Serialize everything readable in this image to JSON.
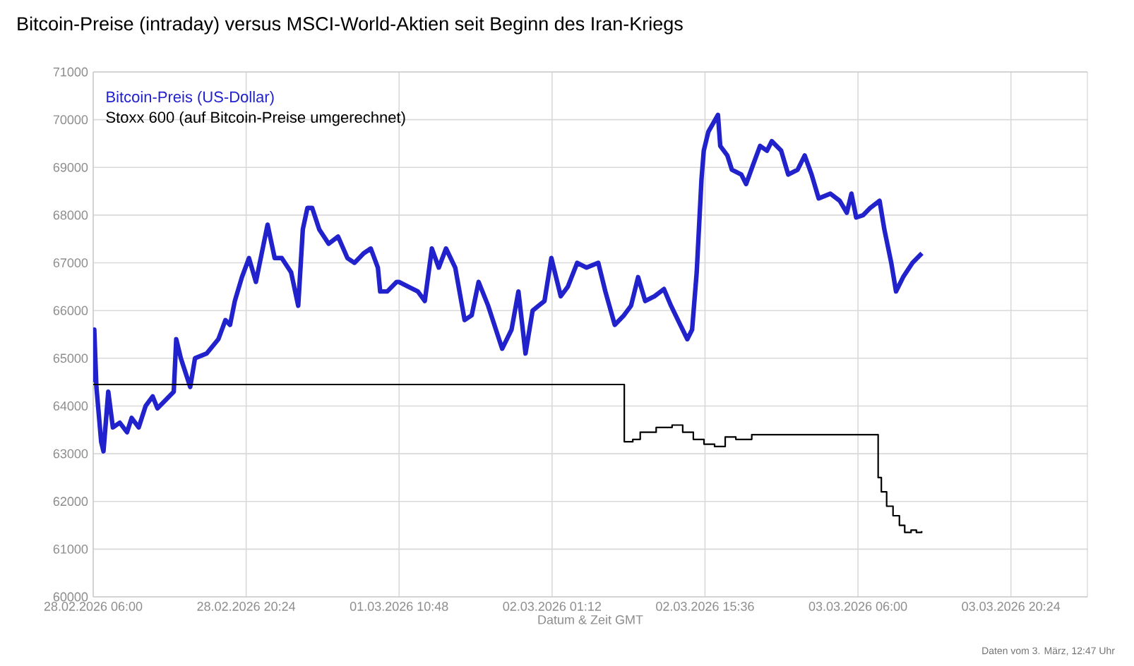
{
  "chart_data": {
    "type": "line",
    "title": "Bitcoin-Preise (intraday) versus MSCI-World-Aktien seit Beginn des Iran-Kriegs",
    "xlabel": "Datum & Zeit GMT",
    "annotations": [
      "Daten vom 3. März, 12:47 Uhr"
    ],
    "xlim": [
      "2026-02-28T06:00",
      "2026-03-04T03:36"
    ],
    "ylim": [
      60000,
      71000
    ],
    "xticks": [
      {
        "value": "2026-02-28T06:00",
        "label": "28.02.2026 06:00"
      },
      {
        "value": "2026-02-28T20:24",
        "label": "28.02.2026 20:24"
      },
      {
        "value": "2026-03-01T10:48",
        "label": "01.03.2026 10:48"
      },
      {
        "value": "2026-03-02T01:12",
        "label": "02.03.2026 01:12"
      },
      {
        "value": "2026-03-02T15:36",
        "label": "02.03.2026 15:36"
      },
      {
        "value": "2026-03-03T06:00",
        "label": "03.03.2026 06:00"
      },
      {
        "value": "2026-03-03T20:24",
        "label": "03.03.2026 20:24"
      }
    ],
    "yticks": [
      60000,
      61000,
      62000,
      63000,
      64000,
      65000,
      66000,
      67000,
      68000,
      69000,
      70000,
      71000
    ],
    "grid": true,
    "legend": "top left",
    "series": [
      {
        "name": "Bitcoin-Preis (US-Dollar)",
        "type": "line",
        "color": "#2222cc",
        "x": [
          "2026-02-28T06:00",
          "2026-02-28T06:06",
          "2026-02-28T06:18",
          "2026-02-28T06:45",
          "2026-02-28T06:58",
          "2026-02-28T07:25",
          "2026-02-28T07:51",
          "2026-02-28T08:30",
          "2026-02-28T09:11",
          "2026-02-28T09:37",
          "2026-02-28T10:17",
          "2026-02-28T10:56",
          "2026-02-28T11:36",
          "2026-02-28T12:03",
          "2026-02-28T12:56",
          "2026-02-28T13:35",
          "2026-02-28T13:49",
          "2026-02-28T14:15",
          "2026-02-28T15:08",
          "2026-02-28T15:35",
          "2026-02-28T16:41",
          "2026-02-28T17:47",
          "2026-02-28T18:27",
          "2026-02-28T18:53",
          "2026-02-28T19:20",
          "2026-02-28T20:00",
          "2026-02-28T20:40",
          "2026-02-28T21:19",
          "2026-02-28T22:25",
          "2026-02-28T23:05",
          "2026-02-28T23:45",
          "2026-03-01T00:38",
          "2026-03-01T01:18",
          "2026-03-01T01:44",
          "2026-03-01T02:10",
          "2026-03-01T02:37",
          "2026-03-01T03:17",
          "2026-03-01T04:10",
          "2026-03-01T05:03",
          "2026-03-01T05:56",
          "2026-03-01T06:36",
          "2026-03-01T07:28",
          "2026-03-01T08:08",
          "2026-03-01T08:48",
          "2026-03-01T09:01",
          "2026-03-01T09:41",
          "2026-03-01T10:34",
          "2026-03-01T10:47",
          "2026-03-01T11:40",
          "2026-03-01T12:34",
          "2026-03-01T13:13",
          "2026-03-01T13:53",
          "2026-03-01T14:32",
          "2026-03-01T15:13",
          "2026-03-01T16:05",
          "2026-03-01T16:58",
          "2026-03-01T17:38",
          "2026-03-01T18:17",
          "2026-03-01T19:11",
          "2026-03-01T20:30",
          "2026-03-01T21:23",
          "2026-03-01T22:02",
          "2026-03-01T22:42",
          "2026-03-01T23:22",
          "2026-03-02T00:29",
          "2026-03-02T01:08",
          "2026-03-02T02:01",
          "2026-03-02T02:41",
          "2026-03-02T03:34",
          "2026-03-02T04:27",
          "2026-03-02T05:33",
          "2026-03-02T06:13",
          "2026-03-02T07:06",
          "2026-03-02T07:58",
          "2026-03-02T08:38",
          "2026-03-02T09:18",
          "2026-03-02T09:58",
          "2026-03-02T10:51",
          "2026-03-02T11:44",
          "2026-03-02T12:24",
          "2026-03-02T13:16",
          "2026-03-02T13:56",
          "2026-03-02T14:23",
          "2026-03-02T14:49",
          "2026-03-02T15:16",
          "2026-03-02T15:29",
          "2026-03-02T15:55",
          "2026-03-02T16:49",
          "2026-03-02T17:02",
          "2026-03-02T17:42",
          "2026-03-02T18:08",
          "2026-03-02T19:01",
          "2026-03-02T19:28",
          "2026-03-02T20:07",
          "2026-03-02T20:47",
          "2026-03-02T21:26",
          "2026-03-02T21:53",
          "2026-03-02T22:46",
          "2026-03-02T23:26",
          "2026-03-03T00:19",
          "2026-03-03T00:59",
          "2026-03-03T01:38",
          "2026-03-03T02:18",
          "2026-03-03T03:24",
          "2026-03-03T04:17",
          "2026-03-03T04:57",
          "2026-03-03T05:23",
          "2026-03-03T05:50",
          "2026-03-03T06:29",
          "2026-03-03T07:09",
          "2026-03-03T08:02",
          "2026-03-03T08:29",
          "2026-03-03T09:08",
          "2026-03-03T09:35",
          "2026-03-03T10:15",
          "2026-03-03T11:08",
          "2026-03-03T12:01"
        ],
        "values": [
          64500,
          65600,
          64400,
          63250,
          63050,
          64300,
          63550,
          63650,
          63450,
          63750,
          63550,
          64000,
          64200,
          63950,
          64150,
          64300,
          65400,
          65000,
          64400,
          65000,
          65100,
          65400,
          65800,
          65700,
          66200,
          66700,
          67100,
          66600,
          67800,
          67100,
          67100,
          66800,
          66100,
          67700,
          68150,
          68150,
          67700,
          67400,
          67550,
          67100,
          67000,
          67200,
          67300,
          66900,
          66400,
          66400,
          66600,
          66600,
          66500,
          66400,
          66200,
          67300,
          66900,
          67300,
          66900,
          65800,
          65900,
          66600,
          66100,
          65200,
          65600,
          66400,
          65100,
          66000,
          66200,
          67100,
          66300,
          66500,
          67000,
          66900,
          67000,
          66400,
          65700,
          65900,
          66100,
          66700,
          66200,
          66300,
          66450,
          66100,
          65700,
          65400,
          65600,
          66800,
          68750,
          69350,
          69750,
          70100,
          69450,
          69250,
          68950,
          68850,
          68650,
          69050,
          69450,
          69350,
          69550,
          69350,
          68850,
          68950,
          69250,
          68850,
          68350,
          68450,
          68300,
          68050,
          68450,
          67950,
          68000,
          68150,
          68300,
          67700,
          67000,
          66400,
          66700,
          67000,
          67200
        ]
      },
      {
        "name": "Stoxx 600 (auf Bitcoin-Preise umgerechnet)",
        "type": "step",
        "color": "#000000",
        "x": [
          "2026-02-28T06:00",
          "2026-03-02T08:00",
          "2026-03-02T08:48",
          "2026-03-02T09:30",
          "2026-03-02T11:00",
          "2026-03-02T12:30",
          "2026-03-02T13:30",
          "2026-03-02T14:30",
          "2026-03-02T15:30",
          "2026-03-02T16:30",
          "2026-03-02T17:30",
          "2026-03-02T18:30",
          "2026-03-02T20:00",
          "2026-03-03T07:54",
          "2026-03-03T08:12",
          "2026-03-03T08:42",
          "2026-03-03T09:18",
          "2026-03-03T09:54",
          "2026-03-03T10:24",
          "2026-03-03T11:00",
          "2026-03-03T11:30",
          "2026-03-03T12:00"
        ],
        "values": [
          64450,
          63250,
          63300,
          63450,
          63550,
          63600,
          63450,
          63300,
          63200,
          63150,
          63350,
          63300,
          63400,
          62500,
          62200,
          61900,
          61700,
          61500,
          61350,
          61400,
          61350,
          61380
        ]
      }
    ]
  }
}
